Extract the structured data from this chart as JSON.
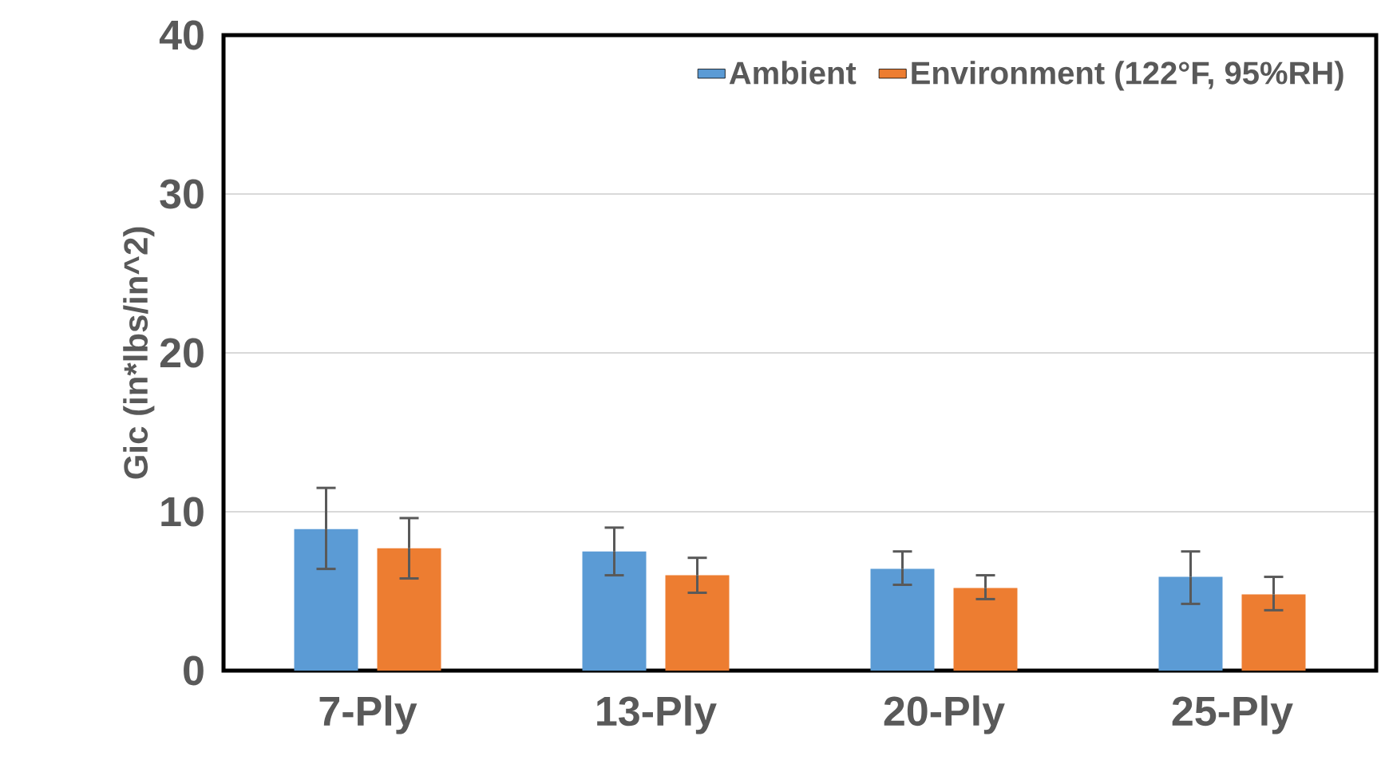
{
  "chart_data": {
    "type": "bar",
    "ylabel": "Gic (in*lbs/in^2)",
    "categories": [
      "7-Ply",
      "13-Ply",
      "20-Ply",
      "25-Ply"
    ],
    "series": [
      {
        "name": "Ambient",
        "color": "#5b9bd5",
        "values": [
          8.9,
          7.5,
          6.4,
          5.9
        ],
        "errors": [
          [
            6.4,
            11.5
          ],
          [
            6.0,
            9.0
          ],
          [
            5.4,
            7.5
          ],
          [
            4.2,
            7.5
          ]
        ]
      },
      {
        "name": "Environment (122°F, 95%RH)",
        "color": "#ed7d31",
        "values": [
          7.7,
          6.0,
          5.2,
          4.8
        ],
        "errors": [
          [
            5.8,
            9.6
          ],
          [
            4.9,
            7.1
          ],
          [
            4.5,
            6.0
          ],
          [
            3.8,
            5.9
          ]
        ]
      }
    ],
    "ylim": [
      0,
      40
    ],
    "yticks": [
      0,
      10,
      20,
      30,
      40
    ],
    "grid": "y",
    "legend": "top right"
  }
}
